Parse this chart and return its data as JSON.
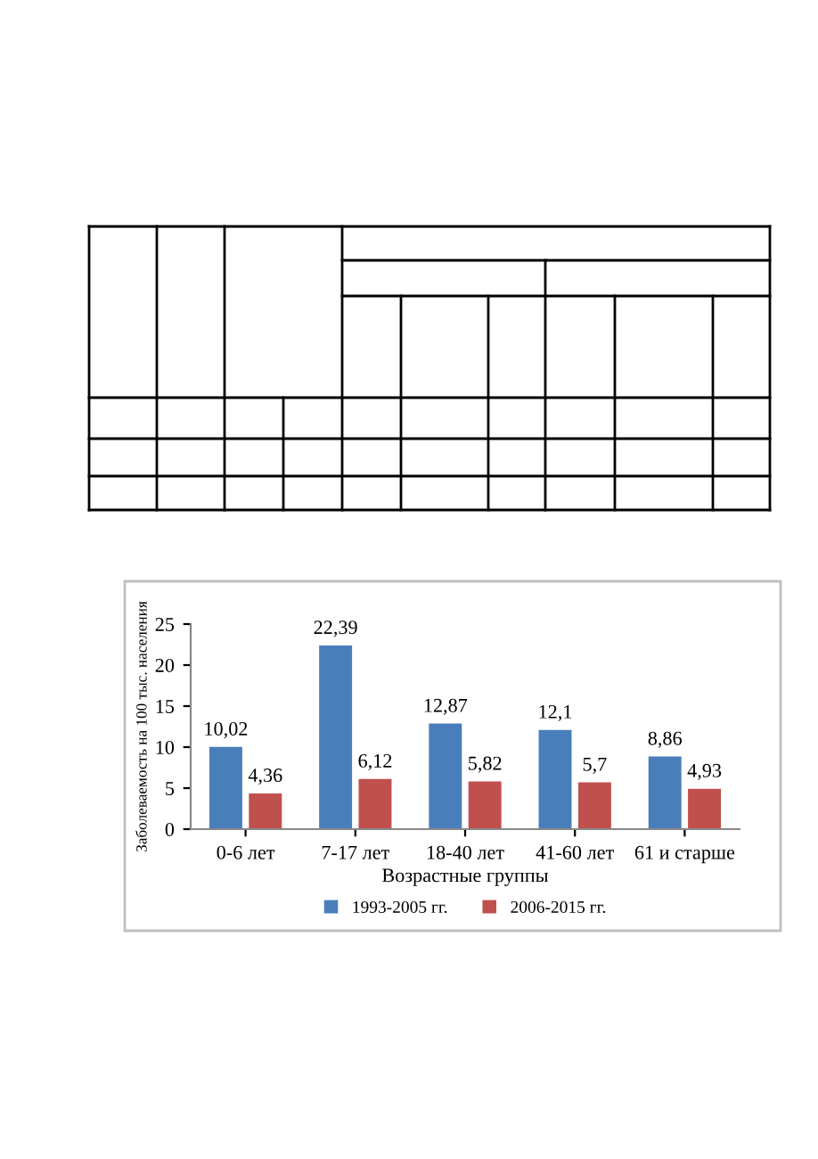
{
  "chart_data": {
    "type": "bar",
    "xlabel": "Возрастные группы",
    "ylabel": "Заболеваемость на 100 тыс. населения",
    "categories": [
      "0-6 лет",
      "7-17 лет",
      "18-40 лет",
      "41-60 лет",
      "61 и старше"
    ],
    "series": [
      {
        "name": "1993-2005 гг.",
        "color": "#4a7ebb",
        "values": [
          10.02,
          22.39,
          12.87,
          12.1,
          8.86
        ],
        "value_labels": [
          "10,02",
          "22,39",
          "12,87",
          "12,1",
          "8,86"
        ]
      },
      {
        "name": "2006-2015 гг.",
        "color": "#c0504d",
        "values": [
          4.36,
          6.12,
          5.82,
          5.7,
          4.93
        ],
        "value_labels": [
          "4,36",
          "6,12",
          "5,82",
          "5,7",
          "4,93"
        ]
      }
    ],
    "ylim": [
      0,
      25
    ],
    "yticks": [
      0,
      5,
      10,
      15,
      20,
      25
    ],
    "grid": false,
    "legend": "bottom"
  }
}
